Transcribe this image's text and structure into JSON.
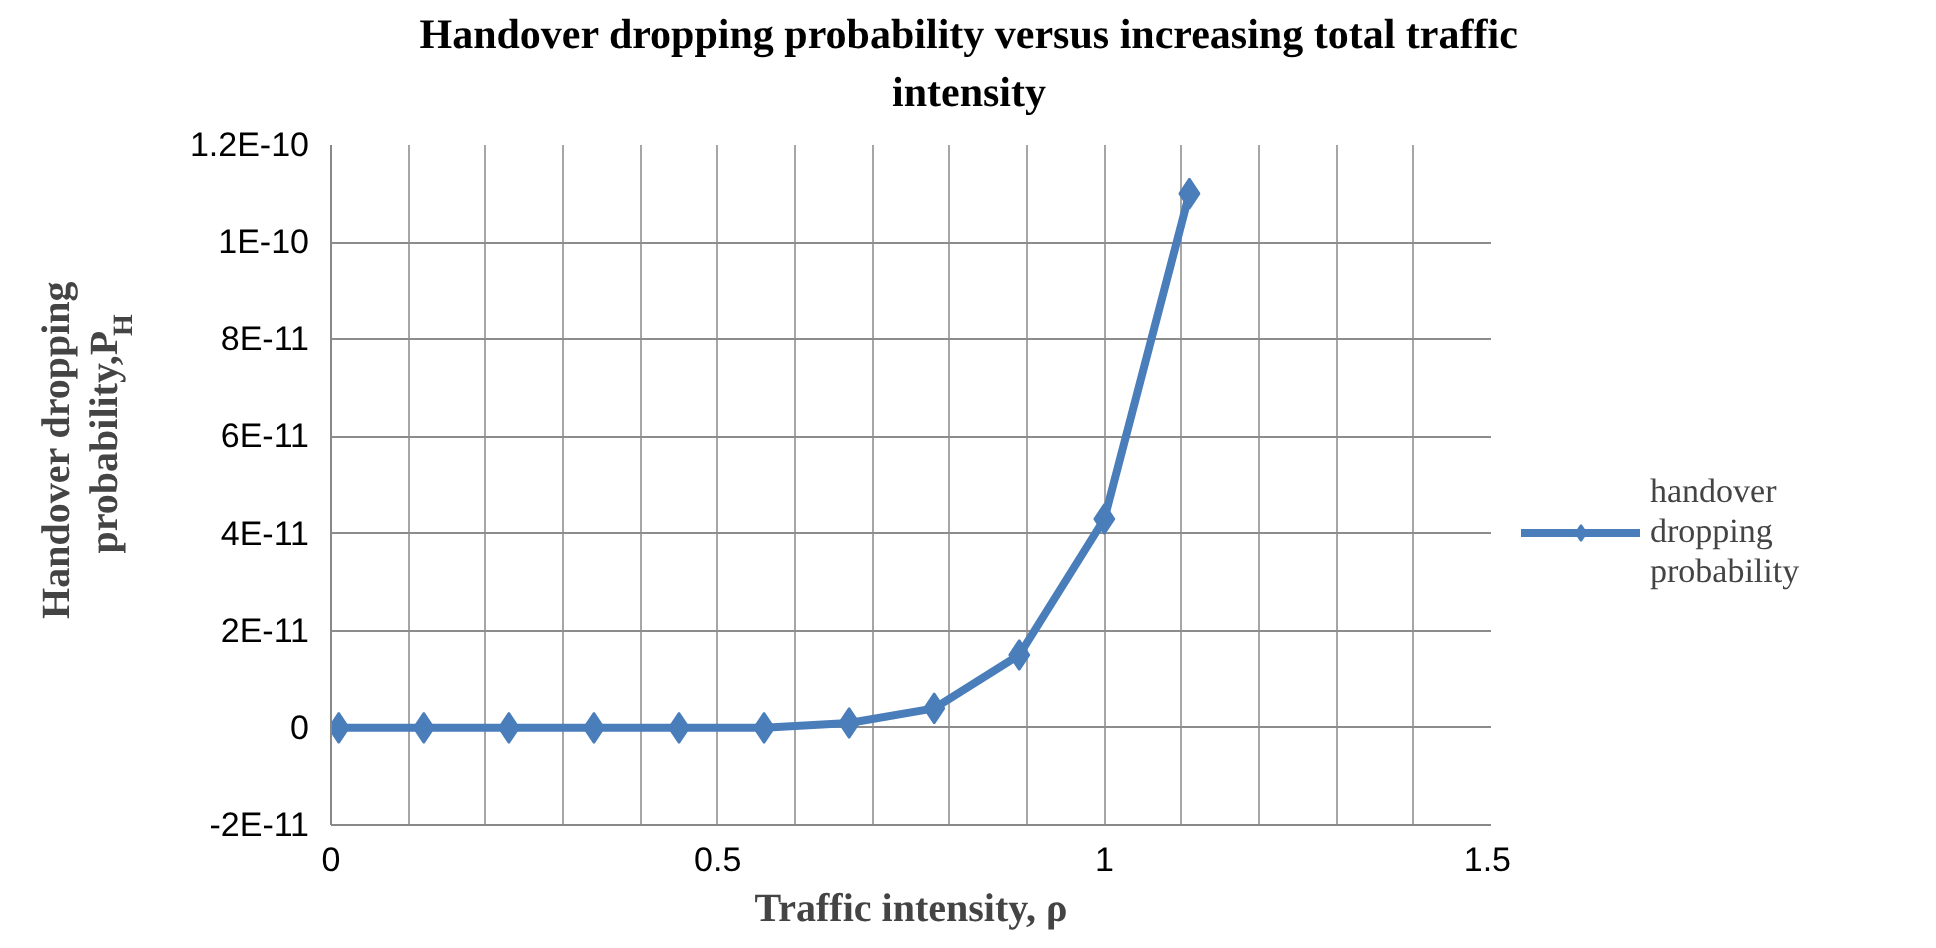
{
  "chart_data": {
    "type": "line",
    "title": "Handover dropping probability versus increasing total traffic intensity",
    "xlabel": "Traffic intensity, ρ",
    "ylabel": "Handover dropping probability,P$_{H}$",
    "x": [
      0.01,
      0.12,
      0.23,
      0.34,
      0.45,
      0.56,
      0.67,
      0.78,
      0.89,
      1.0,
      1.11
    ],
    "series": [
      {
        "name": "handover dropping probability",
        "color": "#4a7ebb",
        "values": [
          0,
          0,
          0,
          0,
          0,
          0,
          1e-12,
          4e-12,
          1.5e-11,
          4.3e-11,
          1.1e-10
        ]
      }
    ],
    "xlim": [
      0,
      1.5
    ],
    "xticks": [
      0,
      {
        "value": 0.1,
        "label": null
      },
      {
        "value": 0.2,
        "label": null
      },
      {
        "value": 0.3,
        "label": null
      },
      {
        "value": 0.4,
        "label": null
      },
      0.5,
      {
        "value": 0.6,
        "label": null
      },
      {
        "value": 0.7,
        "label": null
      },
      {
        "value": 0.8,
        "label": null
      },
      {
        "value": 0.9,
        "label": null
      },
      1,
      {
        "value": 1.1,
        "label": null
      },
      {
        "value": 1.2,
        "label": null
      },
      {
        "value": 1.3,
        "label": null
      },
      {
        "value": 1.4,
        "label": null
      },
      1.5
    ],
    "ylim": [
      -2e-11,
      1.2e-10
    ],
    "yticks": [
      {
        "value": -2e-11,
        "label": "-2E-11"
      },
      0,
      {
        "value": 2e-11,
        "label": "2E-11"
      },
      {
        "value": 4e-11,
        "label": "4E-11"
      },
      {
        "value": 6e-11,
        "label": "6E-11"
      },
      {
        "value": 8e-11,
        "label": "8E-11"
      },
      {
        "value": 1e-10,
        "label": "1E-10"
      },
      {
        "value": 1.2e-10,
        "label": "1.2E-10"
      }
    ],
    "grid": true,
    "legend": "right",
    "marker": "diamond",
    "line_style": "solid"
  }
}
